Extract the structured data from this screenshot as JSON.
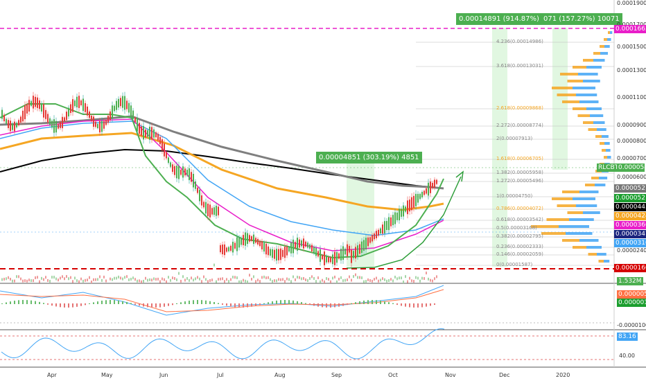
{
  "symbol_tag": "RLCBTC",
  "price_tag": "0.00005452",
  "measure_boxes": {
    "big": "0.00014891 (914.87%) 14891",
    "right": "071 (157.27%) 10071",
    "small": "0.00004851 (303.19%) 4851"
  },
  "price_axis": [
    "0.00019000",
    "0.00017000",
    "0.00015000",
    "0.00013000",
    "0.00011000",
    "0.00009000",
    "0.00008000",
    "0.00007000",
    "0.00006000",
    "0.00002400"
  ],
  "highlight_labels": [
    {
      "text": "0.00016630",
      "bg": "#e91ec9"
    },
    {
      "text": "0.00005276",
      "bg": "#777777"
    },
    {
      "text": "0.00005215",
      "bg": "#1b9e2e"
    },
    {
      "text": "0.00004433",
      "bg": "#000000"
    },
    {
      "text": "0.00004242",
      "bg": "#f5a623"
    },
    {
      "text": "0.00003669",
      "bg": "#e91ec9"
    },
    {
      "text": "0.00003474",
      "bg": "#1a237e"
    },
    {
      "text": "0.00003166",
      "bg": "#42a5f5"
    },
    {
      "text": "0.00001600",
      "bg": "#d50000"
    }
  ],
  "fib_levels": [
    "4.236(0.00014986)",
    "3.618(0.00013031)",
    "2.618(0.00009868)",
    "2.272(0.00008774)",
    "2(0.00007913)",
    "1.618(0.00006705)",
    "1.382(0.00005958)",
    "1.272(0.00005496)",
    "1(0.00004750)",
    "0.786(0.00004072)",
    "0.618(0.00003542)",
    "0.5(0.00003168)",
    "0.382(0.00002795)",
    "0.236(0.00002333)",
    "0.146(0.00002059)",
    "0(0.00001587)"
  ],
  "volume_tag": "1.532M",
  "macd_axis": {
    "tag1": "0.00000576",
    "tag2": "0.00000172",
    "level": "-0.00001000"
  },
  "rsi": {
    "value": "83.16",
    "level": "40.00"
  },
  "time_axis": [
    "Apr",
    "May",
    "Jun",
    "Jul",
    "Aug",
    "Sep",
    "Oct",
    "Nov",
    "Dec",
    "2020"
  ],
  "colors": {
    "green": "#4caf50",
    "magenta": "#e91ec9",
    "orange": "#f5a623",
    "blue": "#42a5f5",
    "gray": "#7f7f7f",
    "black": "#000000",
    "red": "#d50000",
    "navy": "#1a237e"
  }
}
